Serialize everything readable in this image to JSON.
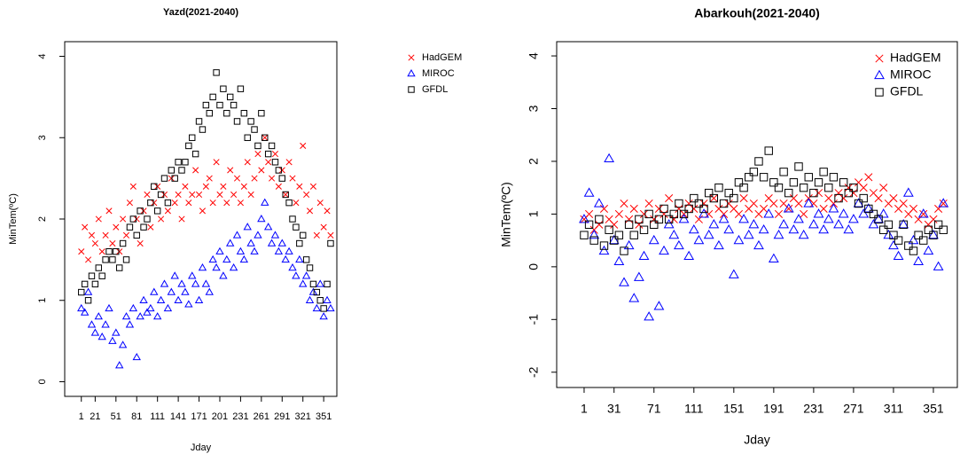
{
  "chart_data": [
    {
      "type": "scatter",
      "title": "Yazd(2021-2040)",
      "x_label": "Jday",
      "y_label": "MinTem(ºC)",
      "x": [
        1,
        6,
        11,
        16,
        21,
        26,
        31,
        36,
        41,
        46,
        51,
        56,
        61,
        66,
        71,
        76,
        81,
        86,
        91,
        96,
        101,
        106,
        111,
        116,
        121,
        126,
        131,
        136,
        141,
        146,
        151,
        156,
        161,
        166,
        171,
        176,
        181,
        186,
        191,
        196,
        201,
        206,
        211,
        216,
        221,
        226,
        231,
        236,
        241,
        246,
        251,
        256,
        261,
        266,
        271,
        276,
        281,
        286,
        291,
        296,
        301,
        306,
        311,
        316,
        321,
        326,
        331,
        336,
        341,
        346,
        351,
        356,
        361
      ],
      "xlim": [
        -23,
        370
      ],
      "xticks": [
        1,
        21,
        51,
        81,
        111,
        141,
        171,
        201,
        231,
        261,
        291,
        321,
        351
      ],
      "ylim": [
        -0.18,
        4.18
      ],
      "yticks": [
        0,
        1,
        2,
        3,
        4
      ],
      "legend": "top-right",
      "series": [
        {
          "name": "HadGEM",
          "color": "#ff0000",
          "marker": "x",
          "values": [
            1.6,
            1.9,
            1.5,
            1.8,
            1.7,
            2.0,
            1.6,
            1.8,
            2.1,
            1.7,
            1.9,
            1.6,
            2.0,
            1.8,
            2.2,
            2.4,
            2.0,
            1.7,
            2.1,
            2.3,
            1.9,
            2.2,
            2.4,
            2.0,
            2.3,
            2.1,
            2.5,
            2.2,
            2.3,
            2.0,
            2.4,
            2.2,
            2.3,
            2.6,
            2.3,
            2.1,
            2.4,
            2.5,
            2.2,
            2.7,
            2.3,
            2.4,
            2.2,
            2.6,
            2.3,
            2.5,
            2.2,
            2.4,
            2.7,
            2.3,
            2.5,
            2.8,
            2.6,
            3.0,
            2.7,
            2.5,
            2.8,
            2.4,
            2.6,
            2.3,
            2.7,
            2.5,
            2.2,
            2.4,
            2.9,
            2.3,
            2.1,
            2.4,
            1.8,
            2.2,
            1.9,
            2.1,
            1.8
          ]
        },
        {
          "name": "MIROC",
          "color": "#0000ff",
          "marker": "triangle",
          "values": [
            0.9,
            0.85,
            1.1,
            0.7,
            0.6,
            0.8,
            0.55,
            0.7,
            0.9,
            0.5,
            0.6,
            0.2,
            0.45,
            0.8,
            0.7,
            0.9,
            0.3,
            0.8,
            1.0,
            0.85,
            0.9,
            1.1,
            0.8,
            1.0,
            1.2,
            0.9,
            1.1,
            1.3,
            1.0,
            1.2,
            1.1,
            0.95,
            1.3,
            1.2,
            1.0,
            1.4,
            1.2,
            1.1,
            1.5,
            1.4,
            1.6,
            1.3,
            1.5,
            1.7,
            1.4,
            1.8,
            1.6,
            1.5,
            1.9,
            1.7,
            1.6,
            1.8,
            2.0,
            2.2,
            1.9,
            1.7,
            1.8,
            1.6,
            1.7,
            1.5,
            1.6,
            1.4,
            1.3,
            1.5,
            1.2,
            1.3,
            1.0,
            1.1,
            0.9,
            1.2,
            0.8,
            1.0,
            0.9
          ]
        },
        {
          "name": "GFDL",
          "color": "#000000",
          "marker": "square",
          "values": [
            1.1,
            1.2,
            1.0,
            1.3,
            1.2,
            1.4,
            1.3,
            1.5,
            1.6,
            1.5,
            1.6,
            1.4,
            1.7,
            1.5,
            1.9,
            2.0,
            1.8,
            2.1,
            1.9,
            2.0,
            2.2,
            2.4,
            2.1,
            2.3,
            2.5,
            2.2,
            2.6,
            2.5,
            2.7,
            2.6,
            2.7,
            2.9,
            3.0,
            2.8,
            3.2,
            3.1,
            3.4,
            3.3,
            3.5,
            3.8,
            3.4,
            3.6,
            3.3,
            3.5,
            3.4,
            3.2,
            3.6,
            3.3,
            3.0,
            3.2,
            3.1,
            2.9,
            3.3,
            3.0,
            2.8,
            2.9,
            2.7,
            2.6,
            2.5,
            2.3,
            2.2,
            2.0,
            1.9,
            1.7,
            1.8,
            1.5,
            1.4,
            1.2,
            1.1,
            1.0,
            0.9,
            1.2,
            1.7
          ]
        }
      ]
    },
    {
      "type": "scatter",
      "title": "Abarkouh(2021-2040)",
      "x_label": "Jday",
      "y_label": "MinTem(ºC)",
      "x": [
        1,
        6,
        11,
        16,
        21,
        26,
        31,
        36,
        41,
        46,
        51,
        56,
        61,
        66,
        71,
        76,
        81,
        86,
        91,
        96,
        101,
        106,
        111,
        116,
        121,
        126,
        131,
        136,
        141,
        146,
        151,
        156,
        161,
        166,
        171,
        176,
        181,
        186,
        191,
        196,
        201,
        206,
        211,
        216,
        221,
        226,
        231,
        236,
        241,
        246,
        251,
        256,
        261,
        266,
        271,
        276,
        281,
        286,
        291,
        296,
        301,
        306,
        311,
        316,
        321,
        326,
        331,
        336,
        341,
        346,
        351,
        356,
        361
      ],
      "xlim": [
        -26.5,
        375
      ],
      "xticks": [
        1,
        31,
        71,
        111,
        151,
        191,
        231,
        271,
        311,
        351
      ],
      "ylim": [
        -2.29,
        4.27
      ],
      "yticks": [
        -2,
        -1,
        0,
        1,
        2,
        3,
        4
      ],
      "legend": "top-right",
      "series": [
        {
          "name": "HadGEM",
          "color": "#ff0000",
          "marker": "x",
          "values": [
            0.9,
            1.0,
            0.7,
            0.8,
            1.1,
            0.9,
            0.8,
            1.0,
            1.2,
            0.9,
            1.1,
            0.8,
            1.0,
            1.2,
            0.9,
            1.1,
            1.0,
            1.3,
            0.9,
            1.1,
            1.0,
            1.2,
            1.1,
            0.9,
            1.2,
            1.0,
            1.3,
            1.1,
            1.0,
            1.2,
            1.1,
            1.0,
            1.3,
            1.1,
            1.2,
            1.0,
            1.1,
            1.3,
            1.2,
            1.0,
            1.2,
            1.1,
            1.3,
            1.2,
            1.0,
            1.3,
            1.2,
            1.4,
            1.1,
            1.3,
            1.2,
            1.4,
            1.3,
            1.5,
            1.4,
            1.6,
            1.5,
            1.7,
            1.4,
            1.3,
            1.5,
            1.2,
            1.3,
            1.1,
            1.2,
            1.0,
            1.1,
            0.9,
            1.0,
            0.8,
            0.9,
            1.1,
            1.2
          ]
        },
        {
          "name": "MIROC",
          "color": "#0000ff",
          "marker": "triangle",
          "values": [
            0.9,
            1.4,
            0.6,
            1.2,
            0.3,
            2.05,
            0.5,
            0.1,
            -0.3,
            0.4,
            -0.6,
            -0.2,
            0.2,
            -0.95,
            0.5,
            -0.75,
            0.3,
            0.8,
            0.6,
            0.4,
            0.9,
            0.2,
            0.7,
            0.5,
            1.0,
            0.6,
            0.8,
            0.4,
            0.9,
            0.7,
            -0.15,
            0.5,
            0.9,
            0.6,
            0.8,
            0.4,
            0.7,
            1.0,
            0.15,
            0.6,
            0.8,
            1.1,
            0.7,
            0.9,
            0.6,
            1.2,
            0.8,
            1.0,
            0.7,
            0.9,
            1.1,
            0.8,
            1.0,
            0.7,
            0.9,
            1.2,
            1.0,
            1.1,
            0.8,
            0.9,
            1.0,
            0.6,
            0.4,
            0.2,
            0.8,
            1.4,
            0.5,
            0.1,
            1.0,
            0.3,
            0.6,
            0.0,
            1.2
          ]
        },
        {
          "name": "GFDL",
          "color": "#000000",
          "marker": "square",
          "values": [
            0.6,
            0.8,
            0.5,
            0.9,
            0.4,
            0.7,
            0.5,
            0.6,
            0.3,
            0.8,
            0.6,
            0.9,
            0.7,
            1.0,
            0.8,
            0.9,
            1.1,
            0.9,
            1.0,
            1.2,
            1.0,
            1.1,
            1.3,
            1.2,
            1.1,
            1.4,
            1.3,
            1.5,
            1.2,
            1.4,
            1.3,
            1.6,
            1.5,
            1.7,
            1.8,
            2.0,
            1.7,
            2.2,
            1.6,
            1.5,
            1.8,
            1.4,
            1.6,
            1.9,
            1.5,
            1.7,
            1.4,
            1.6,
            1.8,
            1.5,
            1.7,
            1.3,
            1.6,
            1.4,
            1.5,
            1.2,
            1.3,
            1.1,
            1.0,
            0.9,
            0.7,
            0.8,
            0.6,
            0.5,
            0.8,
            0.4,
            0.3,
            0.6,
            0.5,
            0.7,
            0.6,
            0.8,
            0.7
          ]
        }
      ]
    }
  ]
}
